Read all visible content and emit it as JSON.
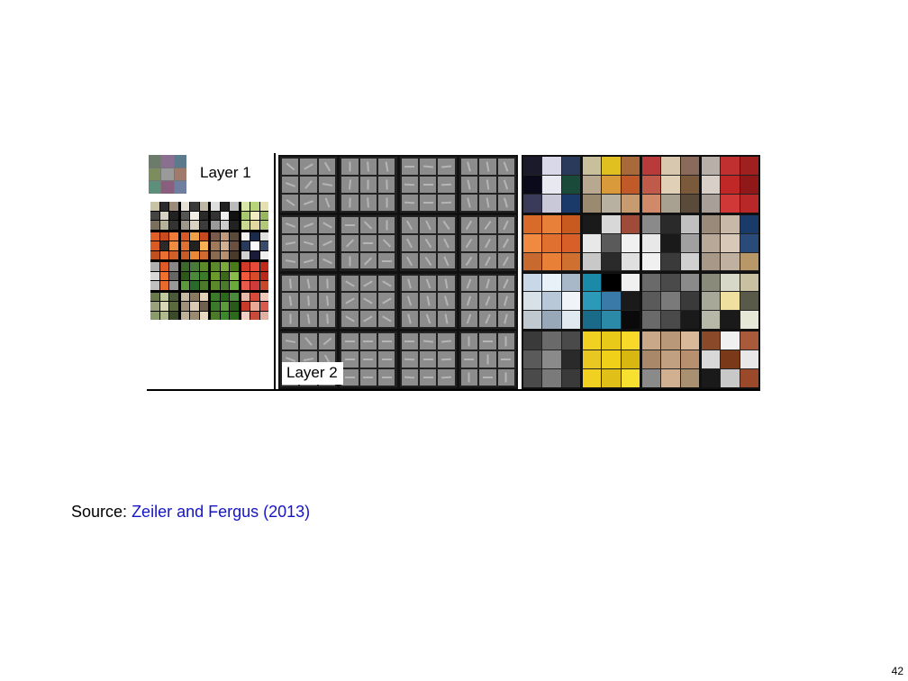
{
  "figure": {
    "layer1_label": "Layer 1",
    "layer2_label": "Layer 2"
  },
  "source": {
    "prefix": "Source:",
    "citation": "Zeiler and Fergus (2013)",
    "citation_color": "#1515c8"
  },
  "page_number": "42"
}
